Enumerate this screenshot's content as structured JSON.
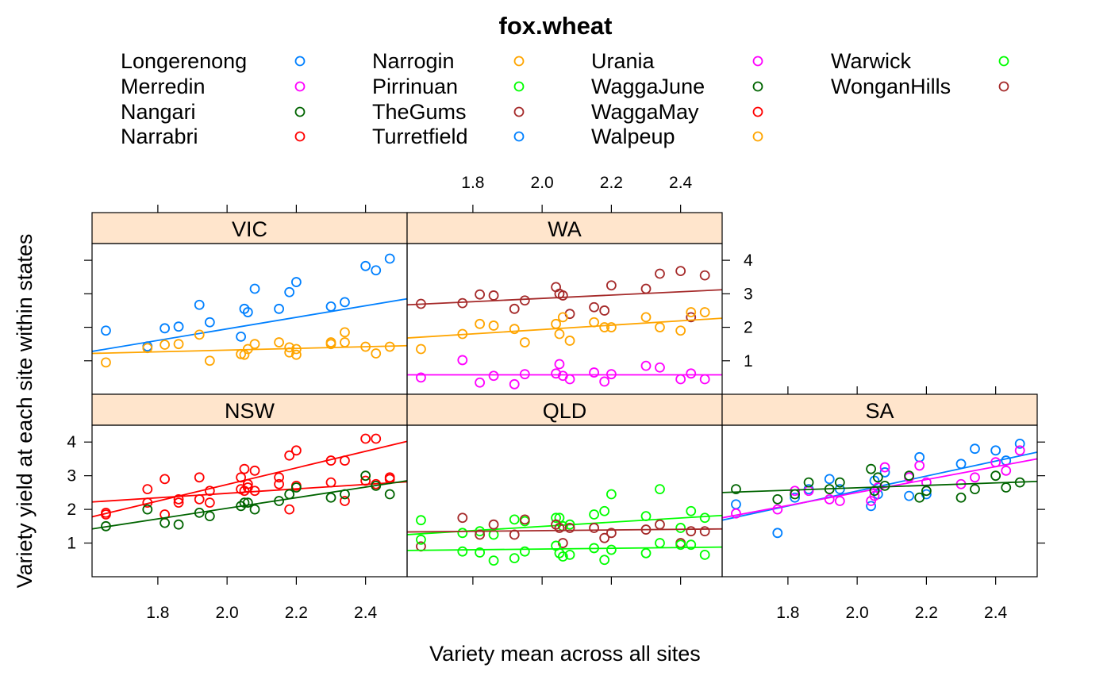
{
  "chart_data": {
    "type": "scatter",
    "title": "fox.wheat",
    "xlabel": "Variety mean across all sites",
    "ylabel": "Variety yield at each site within states",
    "xlim": [
      1.61,
      2.52
    ],
    "ylim": [
      0.0,
      4.5
    ],
    "x_ticks": [
      "1.8",
      "2.0",
      "2.2",
      "2.4"
    ],
    "y_ticks": [
      "1",
      "2",
      "3",
      "4"
    ],
    "grid": false,
    "legend_position": "top",
    "legend_columns": 4,
    "legend": [
      {
        "name": "Longerenong",
        "color": "#0080ff"
      },
      {
        "name": "Merredin",
        "color": "#ff00ff"
      },
      {
        "name": "Nangari",
        "color": "#006400"
      },
      {
        "name": "Narrabri",
        "color": "#ff0000"
      },
      {
        "name": "Narrogin",
        "color": "#ffa500"
      },
      {
        "name": "Pirrinuan",
        "color": "#00ff00"
      },
      {
        "name": "TheGums",
        "color": "#a52a2a"
      },
      {
        "name": "Turretfield",
        "color": "#0080ff"
      },
      {
        "name": "Urania",
        "color": "#ff00ff"
      },
      {
        "name": "WaggaJune",
        "color": "#006400"
      },
      {
        "name": "WaggaMay",
        "color": "#ff0000"
      },
      {
        "name": "Walpeup",
        "color": "#ffa500"
      },
      {
        "name": "Warwick",
        "color": "#00ff00"
      },
      {
        "name": "WonganHills",
        "color": "#a52a2a"
      }
    ],
    "x_means": [
      1.65,
      1.77,
      1.82,
      1.86,
      1.92,
      1.95,
      2.04,
      2.05,
      2.06,
      2.08,
      2.15,
      2.18,
      2.2,
      2.3,
      2.34,
      2.4,
      2.43,
      2.47
    ],
    "panels": [
      {
        "name": "VIC",
        "series": [
          {
            "site": "Longerenong",
            "color": "#0080ff",
            "fit": [
              1.28,
              2.85
            ],
            "y": [
              1.9,
              1.43,
              1.97,
              2.02,
              2.67,
              2.15,
              1.72,
              2.55,
              2.45,
              3.15,
              2.55,
              3.05,
              3.35,
              2.62,
              2.75,
              3.83,
              3.7,
              4.05
            ]
          },
          {
            "site": "Walpeup",
            "color": "#ffa500",
            "fit": [
              1.22,
              1.45
            ],
            "y": [
              0.95,
              1.38,
              1.48,
              1.5,
              1.78,
              1.0,
              1.2,
              1.18,
              1.35,
              1.5,
              1.55,
              1.25,
              1.18,
              1.55,
              1.55,
              1.42,
              1.22,
              1.42
            ]
          },
          {
            "site": "Walpeup",
            "color": "#ffa500",
            "fit": null,
            "y": [
              null,
              null,
              null,
              null,
              null,
              null,
              null,
              null,
              null,
              null,
              null,
              1.4,
              1.35,
              1.5,
              1.85,
              null,
              null,
              null
            ]
          }
        ]
      },
      {
        "name": "WA",
        "series": [
          {
            "site": "WonganHills",
            "color": "#a52a2a",
            "fit": [
              2.67,
              3.12
            ],
            "y": [
              2.7,
              2.72,
              2.98,
              2.95,
              2.55,
              2.8,
              3.2,
              3.0,
              2.95,
              2.4,
              2.6,
              2.5,
              3.25,
              3.15,
              3.6,
              3.68,
              2.3,
              3.55
            ]
          },
          {
            "site": "Narrogin",
            "color": "#ffa500",
            "fit": [
              1.68,
              2.27
            ],
            "y": [
              1.35,
              1.8,
              2.1,
              2.05,
              1.95,
              1.55,
              2.1,
              1.8,
              2.3,
              1.6,
              2.15,
              2.0,
              2.0,
              2.3,
              2.0,
              1.9,
              2.45,
              2.45
            ]
          },
          {
            "site": "Merredin",
            "color": "#ff00ff",
            "fit": [
              0.58,
              0.58
            ],
            "y": [
              0.5,
              1.02,
              0.35,
              0.55,
              0.3,
              0.6,
              0.62,
              0.9,
              0.55,
              0.45,
              0.65,
              0.38,
              0.6,
              0.85,
              0.8,
              0.45,
              0.62,
              0.45
            ]
          }
        ]
      },
      {
        "name": "NSW",
        "series": [
          {
            "site": "Narrabri",
            "color": "#ff0000",
            "fit": [
              1.78,
              4.02
            ],
            "y": [
              1.85,
              2.6,
              2.9,
              2.2,
              2.95,
              2.55,
              2.95,
              3.2,
              2.75,
              3.15,
              2.95,
              3.6,
              3.75,
              3.45,
              3.45,
              4.1,
              4.1,
              2.95
            ]
          },
          {
            "site": "WaggaMay",
            "color": "#ff0000",
            "fit": [
              2.22,
              2.82
            ],
            "y": [
              1.9,
              2.2,
              1.85,
              2.3,
              2.3,
              2.2,
              2.6,
              2.55,
              2.65,
              2.55,
              2.75,
              2.0,
              2.7,
              2.8,
              2.25,
              2.85,
              2.75,
              2.9
            ]
          },
          {
            "site": "Nangari",
            "color": "#006400",
            "fit": [
              1.42,
              2.85
            ],
            "y": [
              1.5,
              2.0,
              1.6,
              1.55,
              1.9,
              1.8,
              2.1,
              2.2,
              2.2,
              2.0,
              2.25,
              2.45,
              2.65,
              2.35,
              2.45,
              3.0,
              2.7,
              2.45
            ]
          }
        ]
      },
      {
        "name": "QLD",
        "series": [
          {
            "site": "Warwick",
            "color": "#00ff00",
            "fit": [
              1.25,
              1.82
            ],
            "y": [
              1.68,
              1.3,
              1.35,
              1.25,
              1.7,
              1.65,
              1.75,
              1.75,
              1.5,
              1.55,
              1.85,
              1.95,
              2.45,
              1.8,
              2.6,
              1.45,
              1.95,
              1.75
            ]
          },
          {
            "site": "TheGums",
            "color": "#a52a2a",
            "fit": [
              1.33,
              1.42
            ],
            "y": [
              0.9,
              1.75,
              1.25,
              1.55,
              1.25,
              1.7,
              1.55,
              1.45,
              1.0,
              1.45,
              1.45,
              1.15,
              1.3,
              1.4,
              1.55,
              1.0,
              1.35,
              1.35
            ]
          },
          {
            "site": "Pirrinuan",
            "color": "#00ff00",
            "fit": [
              0.78,
              0.88
            ],
            "y": [
              1.1,
              0.75,
              0.72,
              0.48,
              0.55,
              0.75,
              0.92,
              0.7,
              0.6,
              0.65,
              0.85,
              0.5,
              0.8,
              0.7,
              1.0,
              0.95,
              0.95,
              0.65
            ]
          }
        ]
      },
      {
        "name": "SA",
        "series": [
          {
            "site": "Turretfield",
            "color": "#0080ff",
            "fit": [
              1.68,
              3.7
            ],
            "y": [
              2.15,
              1.3,
              2.35,
              2.6,
              2.9,
              2.6,
              2.1,
              2.85,
              2.45,
              3.1,
              2.4,
              3.55,
              2.45,
              3.35,
              3.8,
              3.75,
              3.45,
              3.95
            ]
          },
          {
            "site": "Urania",
            "color": "#ff00ff",
            "fit": [
              1.75,
              3.5
            ],
            "y": [
              1.88,
              2.0,
              2.55,
              2.55,
              2.3,
              2.25,
              2.25,
              2.4,
              2.65,
              3.25,
              2.95,
              3.3,
              2.8,
              2.75,
              2.95,
              3.4,
              3.15,
              3.75
            ]
          },
          {
            "site": "WaggaJune",
            "color": "#006400",
            "fit": [
              2.5,
              2.83
            ],
            "y": [
              2.6,
              2.3,
              2.45,
              2.8,
              2.6,
              2.8,
              3.2,
              2.55,
              2.95,
              2.7,
              3.0,
              2.35,
              2.55,
              2.35,
              2.6,
              3.0,
              2.65,
              2.8
            ]
          }
        ]
      }
    ]
  }
}
